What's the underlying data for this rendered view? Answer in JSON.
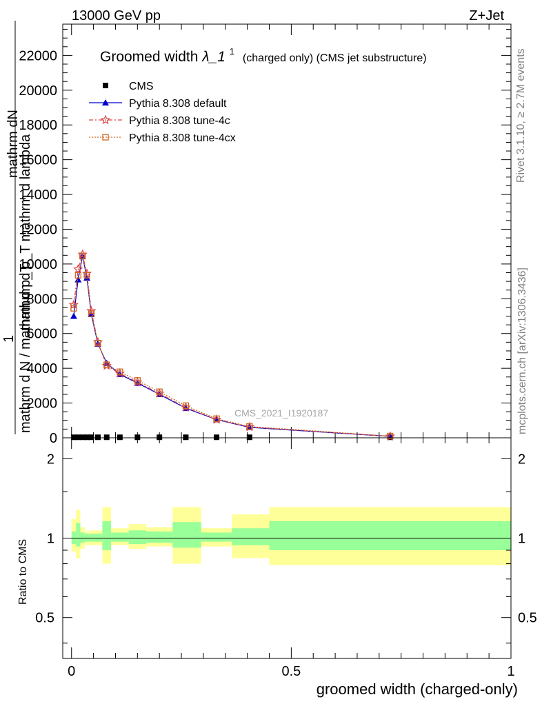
{
  "header": {
    "energy_label": "13000 GeV pp",
    "process_label": "Z+Jet"
  },
  "side_text": {
    "rivet": "Rivet 3.1.10, ≥ 2.7M events",
    "mcplots": "mcplots.cern.ch [arXiv:1306.3436]"
  },
  "watermark": "CMS_2021_I1920187",
  "chart_data": [
    {
      "type": "line",
      "panel": "main",
      "title": "Groomed width",
      "title_symbol": "λ_1",
      "title_superscript": "1",
      "title_suffix": "(charged only) (CMS jet substructure)",
      "ylabel_top": "mathrm dN",
      "ylabel_frac_num": "1",
      "ylabel_mid": "mathrm d p_T mathrm d lambda",
      "ylabel_bottom": "mathrm d N / mathrm d p_T",
      "xlim": [
        -0.02,
        1.0
      ],
      "ylim": [
        0,
        23800
      ],
      "yticks": [
        0,
        2000,
        4000,
        6000,
        8000,
        10000,
        12000,
        14000,
        16000,
        18000,
        20000,
        22000
      ],
      "ytick_labels": [
        "0",
        "2000",
        "4000",
        "6000",
        "8000",
        "10000",
        "12000",
        "14000",
        "16000",
        "18000",
        "20000",
        "22000"
      ],
      "legend_position": "top-left",
      "series": [
        {
          "name": "CMS",
          "color": "#000000",
          "marker": "square",
          "x": [
            0.005,
            0.015,
            0.025,
            0.035,
            0.045,
            0.06,
            0.08,
            0.11,
            0.15,
            0.2,
            0.26,
            0.33,
            0.405,
            0.725
          ],
          "y": [
            30,
            30,
            30,
            30,
            30,
            30,
            30,
            30,
            30,
            30,
            30,
            30,
            30,
            30
          ]
        },
        {
          "name": "Pythia 8.308 default",
          "color": "#0000cc",
          "marker": "triangle",
          "x": [
            0.005,
            0.015,
            0.025,
            0.035,
            0.045,
            0.06,
            0.08,
            0.11,
            0.15,
            0.2,
            0.26,
            0.33,
            0.405,
            0.725
          ],
          "y": [
            7000,
            9100,
            10450,
            9200,
            7100,
            5400,
            4300,
            3650,
            3150,
            2500,
            1700,
            1050,
            600,
            80
          ]
        },
        {
          "name": "Pythia 8.308 tune-4c",
          "color": "#dd4444",
          "marker": "star",
          "x": [
            0.005,
            0.015,
            0.025,
            0.035,
            0.045,
            0.06,
            0.08,
            0.11,
            0.15,
            0.2,
            0.26,
            0.33,
            0.405,
            0.725
          ],
          "y": [
            7650,
            9700,
            10550,
            9450,
            7300,
            5500,
            4150,
            3700,
            3200,
            2550,
            1750,
            1050,
            620,
            80
          ]
        },
        {
          "name": "Pythia 8.308 tune-4cx",
          "color": "#cc6622",
          "marker": "open-square",
          "x": [
            0.005,
            0.015,
            0.025,
            0.035,
            0.045,
            0.06,
            0.08,
            0.11,
            0.15,
            0.2,
            0.26,
            0.33,
            0.405,
            0.725
          ],
          "y": [
            7450,
            9350,
            10450,
            9350,
            7150,
            5450,
            4200,
            3800,
            3300,
            2650,
            1850,
            1100,
            650,
            100
          ]
        }
      ]
    },
    {
      "type": "area",
      "panel": "ratio",
      "ylabel": "Ratio to CMS",
      "xlabel": "groomed width (charged-only)",
      "xlim": [
        -0.02,
        1.0
      ],
      "ylim": [
        0.35,
        2.4
      ],
      "yscale": "log",
      "yticks": [
        0.5,
        1,
        2
      ],
      "ytick_labels": [
        "0.5",
        "1",
        "2"
      ],
      "xticks": [
        0,
        0.5,
        1
      ],
      "xtick_labels": [
        "0",
        "0.5",
        "1"
      ],
      "reference_line": 1,
      "band_colors": {
        "inner": "#99ff99",
        "outer": "#ffff99"
      },
      "bins": [
        {
          "lo": 0.0,
          "hi": 0.01,
          "inner": [
            0.95,
            1.06
          ],
          "outer": [
            0.89,
            1.18
          ]
        },
        {
          "lo": 0.01,
          "hi": 0.02,
          "inner": [
            0.93,
            1.14
          ],
          "outer": [
            0.84,
            1.28
          ]
        },
        {
          "lo": 0.02,
          "hi": 0.03,
          "inner": [
            0.96,
            1.05
          ],
          "outer": [
            0.91,
            1.1
          ]
        },
        {
          "lo": 0.03,
          "hi": 0.04,
          "inner": [
            0.97,
            1.04
          ],
          "outer": [
            0.94,
            1.06
          ]
        },
        {
          "lo": 0.04,
          "hi": 0.05,
          "inner": [
            0.97,
            1.04
          ],
          "outer": [
            0.94,
            1.07
          ]
        },
        {
          "lo": 0.05,
          "hi": 0.07,
          "inner": [
            0.97,
            1.04
          ],
          "outer": [
            0.94,
            1.07
          ]
        },
        {
          "lo": 0.07,
          "hi": 0.09,
          "inner": [
            0.9,
            1.16
          ],
          "outer": [
            0.8,
            1.31
          ]
        },
        {
          "lo": 0.09,
          "hi": 0.13,
          "inner": [
            0.97,
            1.05
          ],
          "outer": [
            0.94,
            1.09
          ]
        },
        {
          "lo": 0.13,
          "hi": 0.17,
          "inner": [
            0.95,
            1.07
          ],
          "outer": [
            0.91,
            1.13
          ]
        },
        {
          "lo": 0.17,
          "hi": 0.23,
          "inner": [
            0.96,
            1.06
          ],
          "outer": [
            0.93,
            1.1
          ]
        },
        {
          "lo": 0.23,
          "hi": 0.295,
          "inner": [
            0.92,
            1.15
          ],
          "outer": [
            0.8,
            1.31
          ]
        },
        {
          "lo": 0.295,
          "hi": 0.365,
          "inner": [
            0.97,
            1.05
          ],
          "outer": [
            0.93,
            1.09
          ]
        },
        {
          "lo": 0.365,
          "hi": 0.45,
          "inner": [
            0.94,
            1.09
          ],
          "outer": [
            0.84,
            1.23
          ]
        },
        {
          "lo": 0.45,
          "hi": 1.0,
          "inner": [
            0.9,
            1.16
          ],
          "outer": [
            0.79,
            1.31
          ]
        }
      ]
    }
  ]
}
